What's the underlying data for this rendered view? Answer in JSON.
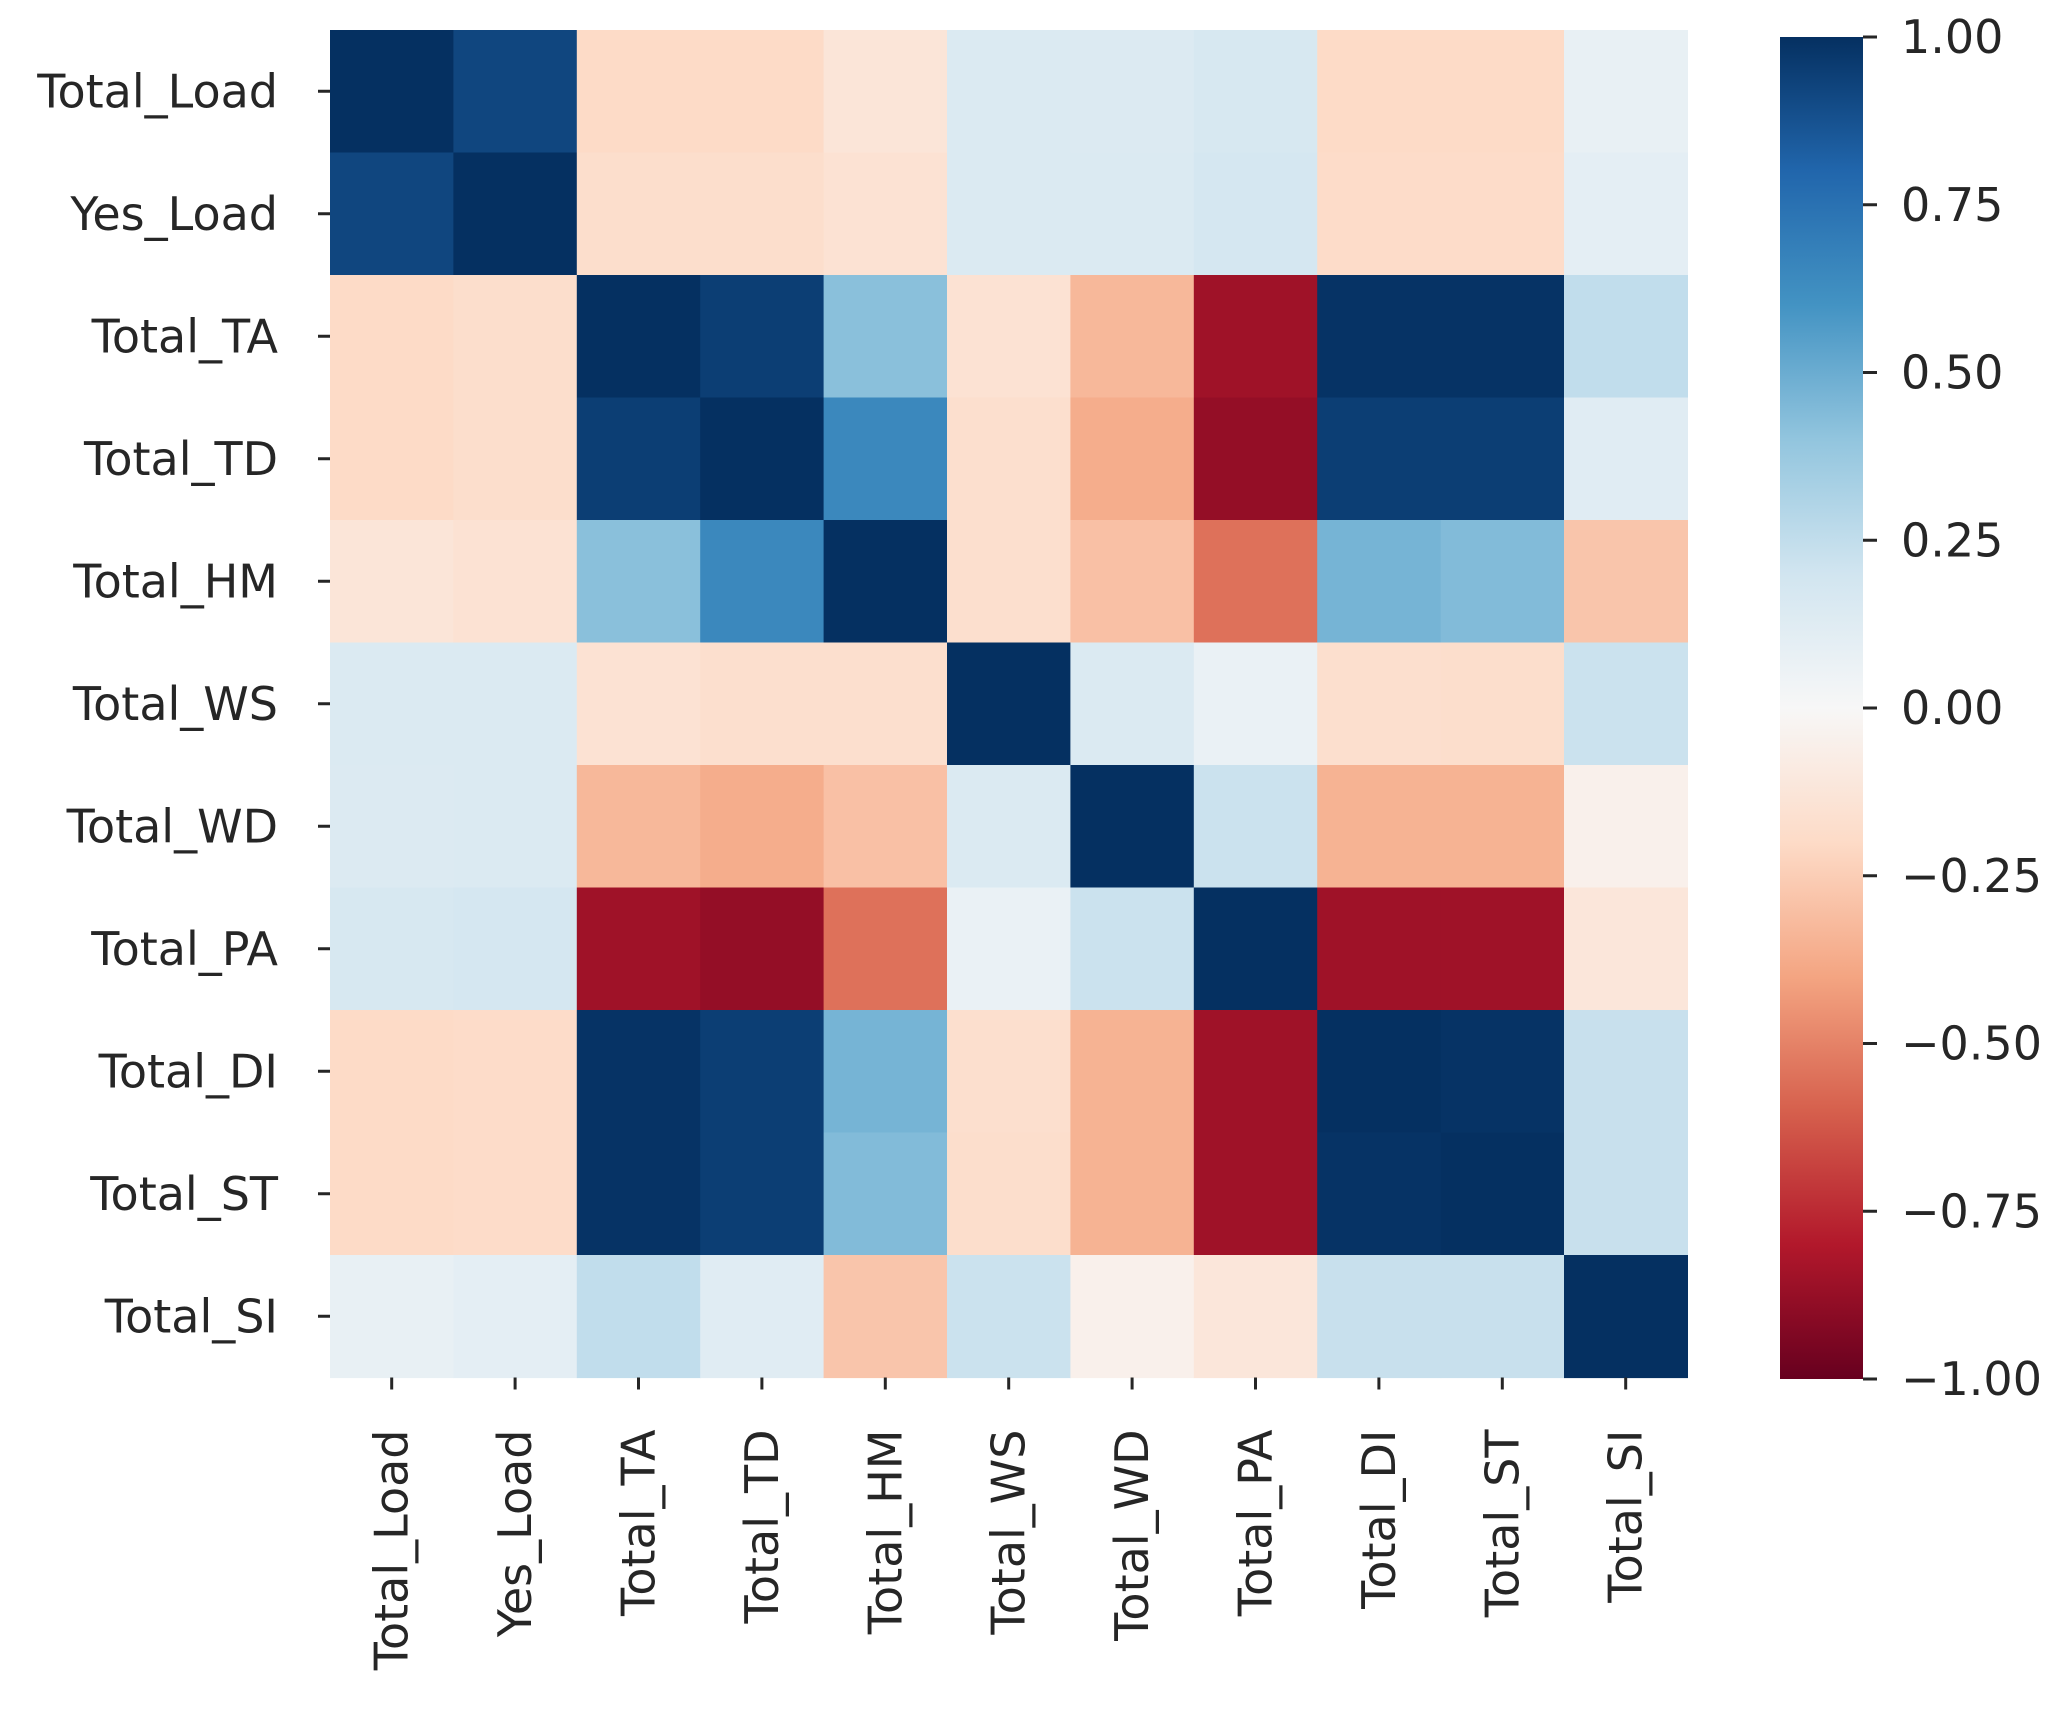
{
  "chart_data": {
    "type": "heatmap",
    "title": "",
    "xlabel": "",
    "ylabel": "",
    "row_labels": [
      "Total_Load",
      "Yes_Load",
      "Total_TA",
      "Total_TD",
      "Total_HM",
      "Total_WS",
      "Total_WD",
      "Total_PA",
      "Total_DI",
      "Total_ST",
      "Total_SI"
    ],
    "col_labels": [
      "Total_Load",
      "Yes_Load",
      "Total_TA",
      "Total_TD",
      "Total_HM",
      "Total_WS",
      "Total_WD",
      "Total_PA",
      "Total_DI",
      "Total_ST",
      "Total_SI"
    ],
    "values": [
      [
        1.0,
        0.92,
        -0.2,
        -0.2,
        -0.13,
        0.15,
        0.14,
        0.17,
        -0.2,
        -0.2,
        0.08
      ],
      [
        0.92,
        1.0,
        -0.18,
        -0.18,
        -0.15,
        0.15,
        0.15,
        0.18,
        -0.19,
        -0.19,
        0.1
      ],
      [
        -0.2,
        -0.18,
        1.0,
        0.95,
        0.42,
        -0.15,
        -0.33,
        -0.85,
        0.99,
        0.99,
        0.25
      ],
      [
        -0.2,
        -0.18,
        0.95,
        1.0,
        0.65,
        -0.17,
        -0.37,
        -0.88,
        0.95,
        0.95,
        0.12
      ],
      [
        -0.13,
        -0.15,
        0.42,
        0.65,
        1.0,
        -0.17,
        -0.3,
        -0.55,
        0.47,
        0.44,
        -0.28
      ],
      [
        0.15,
        0.15,
        -0.15,
        -0.17,
        -0.17,
        1.0,
        0.15,
        0.07,
        -0.17,
        -0.18,
        0.22
      ],
      [
        0.14,
        0.15,
        -0.33,
        -0.37,
        -0.3,
        0.15,
        1.0,
        0.22,
        -0.35,
        -0.35,
        -0.05
      ],
      [
        0.17,
        0.18,
        -0.85,
        -0.88,
        -0.55,
        0.07,
        0.22,
        1.0,
        -0.85,
        -0.85,
        -0.12
      ],
      [
        -0.2,
        -0.19,
        0.99,
        0.95,
        0.47,
        -0.17,
        -0.35,
        -0.85,
        1.0,
        0.99,
        0.23
      ],
      [
        -0.2,
        -0.19,
        0.99,
        0.95,
        0.44,
        -0.18,
        -0.35,
        -0.85,
        0.99,
        1.0,
        0.23
      ],
      [
        0.08,
        0.1,
        0.25,
        0.12,
        -0.28,
        0.22,
        -0.05,
        -0.12,
        0.23,
        0.23,
        1.0
      ]
    ],
    "vmin": -1.0,
    "vmax": 1.0,
    "colormap": "RdBu",
    "colorbar": {
      "ticks": [
        1.0,
        0.75,
        0.5,
        0.25,
        0.0,
        -0.25,
        -0.5,
        -0.75,
        -1.0
      ],
      "tick_labels": [
        "1.00",
        "0.75",
        "0.50",
        "0.25",
        "0.00",
        "−0.25",
        "−0.50",
        "−0.75",
        "−1.00"
      ]
    },
    "colormap_stops": [
      "#67001f",
      "#b2182b",
      "#d6604d",
      "#f4a582",
      "#fddbc7",
      "#f7f7f7",
      "#d1e5f0",
      "#92c5de",
      "#4393c3",
      "#2166ac",
      "#053061"
    ]
  }
}
